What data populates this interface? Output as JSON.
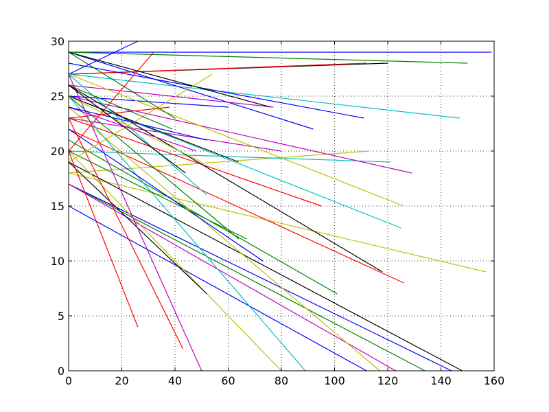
{
  "chart_data": {
    "type": "line",
    "title": "",
    "xlabel": "",
    "ylabel": "",
    "xlim": [
      0,
      160
    ],
    "ylim": [
      0,
      30
    ],
    "x_ticks": [
      0,
      20,
      40,
      60,
      80,
      100,
      120,
      140,
      160
    ],
    "y_ticks": [
      0,
      5,
      10,
      15,
      20,
      25,
      30
    ],
    "x_tick_labels": [
      "0",
      "20",
      "40",
      "60",
      "80",
      "100",
      "120",
      "140",
      "160"
    ],
    "y_tick_labels": [
      "0",
      "5",
      "10",
      "15",
      "20",
      "25",
      "30"
    ],
    "grid": true,
    "legend": "none",
    "series": [
      {
        "color": "#0000ff",
        "x": [
          0,
          159
        ],
        "y": [
          29,
          29
        ]
      },
      {
        "color": "#008000",
        "x": [
          0,
          150
        ],
        "y": [
          29,
          28
        ]
      },
      {
        "color": "#000000",
        "x": [
          0,
          120
        ],
        "y": [
          27,
          28
        ]
      },
      {
        "color": "#ff0000",
        "x": [
          0,
          112
        ],
        "y": [
          27,
          28
        ]
      },
      {
        "color": "#00bfbf",
        "x": [
          0,
          147
        ],
        "y": [
          27,
          23
        ]
      },
      {
        "color": "#0000ff",
        "x": [
          0,
          111
        ],
        "y": [
          28,
          23
        ]
      },
      {
        "color": "#0000ff",
        "x": [
          0,
          92
        ],
        "y": [
          29,
          22
        ]
      },
      {
        "color": "#bf00bf",
        "x": [
          0,
          77
        ],
        "y": [
          26,
          24
        ]
      },
      {
        "color": "#000000",
        "x": [
          0,
          76
        ],
        "y": [
          29,
          24
        ]
      },
      {
        "color": "#0000ff",
        "x": [
          0,
          60
        ],
        "y": [
          25,
          24
        ]
      },
      {
        "color": "#bf00bf",
        "x": [
          0,
          80
        ],
        "y": [
          23,
          20
        ]
      },
      {
        "color": "#bfbf00",
        "x": [
          0,
          113
        ],
        "y": [
          18,
          20
        ]
      },
      {
        "color": "#00bfbf",
        "x": [
          0,
          121
        ],
        "y": [
          20,
          19
        ]
      },
      {
        "color": "#bf00bf",
        "x": [
          0,
          129
        ],
        "y": [
          25,
          18
        ]
      },
      {
        "color": "#bfbf00",
        "x": [
          0,
          126
        ],
        "y": [
          27,
          15
        ]
      },
      {
        "color": "#00bfbf",
        "x": [
          0,
          125
        ],
        "y": [
          25,
          13
        ]
      },
      {
        "color": "#ff0000",
        "x": [
          0,
          95
        ],
        "y": [
          23,
          15
        ]
      },
      {
        "color": "#bfbf00",
        "x": [
          0,
          157
        ],
        "y": [
          18,
          9
        ]
      },
      {
        "color": "#ff0000",
        "x": [
          0,
          126
        ],
        "y": [
          22,
          8
        ]
      },
      {
        "color": "#000000",
        "x": [
          0,
          118
        ],
        "y": [
          26,
          9
        ]
      },
      {
        "color": "#008000",
        "x": [
          0,
          101
        ],
        "y": [
          21,
          7
        ]
      },
      {
        "color": "#000000",
        "x": [
          0,
          148
        ],
        "y": [
          19,
          0
        ]
      },
      {
        "color": "#0000ff",
        "x": [
          0,
          144
        ],
        "y": [
          17,
          0
        ]
      },
      {
        "color": "#008000",
        "x": [
          0,
          134
        ],
        "y": [
          17,
          0
        ]
      },
      {
        "color": "#bf00bf",
        "x": [
          0,
          123
        ],
        "y": [
          17,
          0
        ]
      },
      {
        "color": "#bfbf00",
        "x": [
          0,
          117
        ],
        "y": [
          24,
          0
        ]
      },
      {
        "color": "#0000ff",
        "x": [
          0,
          112
        ],
        "y": [
          15,
          0
        ]
      },
      {
        "color": "#00bfbf",
        "x": [
          0,
          89
        ],
        "y": [
          25,
          0
        ]
      },
      {
        "color": "#bfbf00",
        "x": [
          0,
          80
        ],
        "y": [
          20,
          0
        ]
      },
      {
        "color": "#0000ff",
        "x": [
          0,
          73
        ],
        "y": [
          22,
          10
        ]
      },
      {
        "color": "#008000",
        "x": [
          0,
          67
        ],
        "y": [
          20,
          12
        ]
      },
      {
        "color": "#000000",
        "x": [
          0,
          52
        ],
        "y": [
          19,
          7
        ]
      },
      {
        "color": "#bf00bf",
        "x": [
          0,
          50
        ],
        "y": [
          27,
          0
        ]
      },
      {
        "color": "#ff0000",
        "x": [
          0,
          43
        ],
        "y": [
          23,
          2
        ]
      },
      {
        "color": "#ff0000",
        "x": [
          0,
          26
        ],
        "y": [
          20,
          4
        ]
      },
      {
        "color": "#008000",
        "x": [
          0,
          64
        ],
        "y": [
          25,
          12
        ]
      },
      {
        "color": "#000000",
        "x": [
          0,
          64
        ],
        "y": [
          25,
          19
        ]
      },
      {
        "color": "#bfbf00",
        "x": [
          0,
          54
        ],
        "y": [
          19,
          27
        ]
      },
      {
        "color": "#008000",
        "x": [
          0,
          40
        ],
        "y": [
          29,
          23
        ]
      },
      {
        "color": "#ff0000",
        "x": [
          0,
          32
        ],
        "y": [
          20,
          29
        ]
      },
      {
        "color": "#0000ff",
        "x": [
          0,
          26
        ],
        "y": [
          27,
          30
        ]
      },
      {
        "color": "#00bfbf",
        "x": [
          0,
          52
        ],
        "y": [
          27,
          16
        ]
      },
      {
        "color": "#bfbf00",
        "x": [
          0,
          50
        ],
        "y": [
          25,
          19
        ]
      },
      {
        "color": "#008000",
        "x": [
          0,
          39
        ],
        "y": [
          26,
          22
        ]
      },
      {
        "color": "#bf00bf",
        "x": [
          0,
          48
        ],
        "y": [
          24,
          20
        ]
      },
      {
        "color": "#0000ff",
        "x": [
          0,
          52
        ],
        "y": [
          24,
          21
        ]
      },
      {
        "color": "#ff0000",
        "x": [
          0,
          38
        ],
        "y": [
          23,
          24
        ]
      },
      {
        "color": "#000000",
        "x": [
          0,
          44
        ],
        "y": [
          26,
          18
        ]
      }
    ]
  }
}
